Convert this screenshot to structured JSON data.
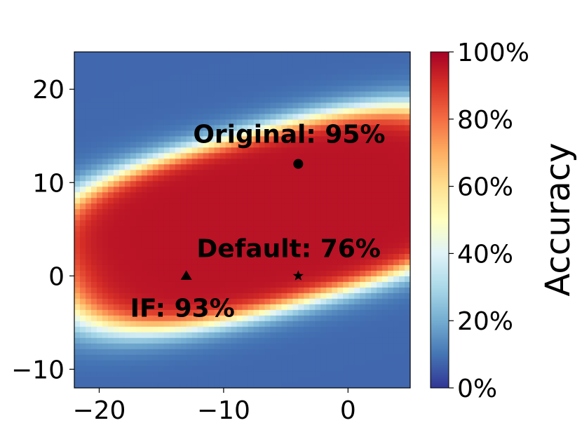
{
  "chart_data": {
    "type": "heatmap",
    "title": "",
    "xlabel": "",
    "ylabel": "",
    "xlim": [
      -22,
      5
    ],
    "ylim": [
      -12,
      24
    ],
    "x_ticks": [
      {
        "value": -20,
        "label": "−20"
      },
      {
        "value": -10,
        "label": "−10"
      },
      {
        "value": 0,
        "label": "0"
      }
    ],
    "y_ticks": [
      {
        "value": -10,
        "label": "−10"
      },
      {
        "value": 0,
        "label": "0"
      },
      {
        "value": 10,
        "label": "10"
      },
      {
        "value": 20,
        "label": "20"
      }
    ],
    "colormap": "RdYlBu_r",
    "colormap_stops": [
      "#313695",
      "#4575b4",
      "#74add1",
      "#abd9e9",
      "#e0f3f8",
      "#ffffbf",
      "#fee090",
      "#fdae61",
      "#f46d43",
      "#d73027",
      "#a50026"
    ],
    "colorbar": {
      "label": "Accuracy",
      "range": [
        0,
        100
      ],
      "ticks": [
        {
          "value": 0,
          "label": "0%"
        },
        {
          "value": 20,
          "label": "20%"
        },
        {
          "value": 40,
          "label": "40%"
        },
        {
          "value": 60,
          "label": "60%"
        },
        {
          "value": 80,
          "label": "80%"
        },
        {
          "value": 100,
          "label": "100%"
        }
      ]
    },
    "points": [
      {
        "name": "Original",
        "x": -4,
        "y": 12,
        "marker": "circle",
        "accuracy": 95,
        "label": "Original: 95%"
      },
      {
        "name": "Default",
        "x": -4,
        "y": 0,
        "marker": "star",
        "accuracy": 76,
        "label": "Default: 76%"
      },
      {
        "name": "IF",
        "x": -13,
        "y": 0,
        "marker": "triangle",
        "accuracy": 93,
        "label": "IF: 93%"
      }
    ]
  }
}
